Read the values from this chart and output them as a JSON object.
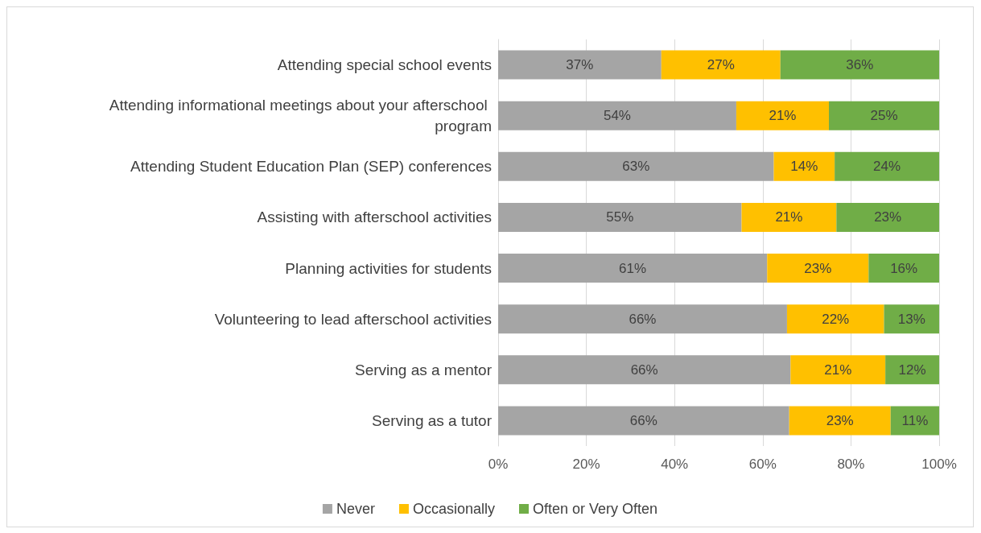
{
  "chart_data": {
    "type": "bar",
    "orientation": "horizontal",
    "stacked": true,
    "categories": [
      "Attending special school events",
      "Attending informational meetings about your afterschool program",
      "Attending Student Education Plan (SEP) conferences",
      "Assisting with afterschool activities",
      "Planning activities for students",
      "Volunteering to lead afterschool activities",
      "Serving as a mentor",
      "Serving as a tutor"
    ],
    "series": [
      {
        "name": "Never",
        "color": "#a5a5a5",
        "values": [
          37,
          54,
          62.5,
          55.2,
          61,
          65.5,
          66.3,
          66
        ],
        "value_labels": [
          "37%",
          "54%",
          "63%",
          "55%",
          "61%",
          "66%",
          "66%",
          "66%"
        ]
      },
      {
        "name": "Occasionally",
        "color": "#ffc000",
        "values": [
          27,
          21,
          13.8,
          21.5,
          23,
          22,
          21.5,
          23
        ],
        "value_labels": [
          "27%",
          "21%",
          "14%",
          "21%",
          "23%",
          "22%",
          "21%",
          "23%"
        ]
      },
      {
        "name": "Often or Very Often",
        "color": "#70ad47",
        "values": [
          36,
          25,
          23.7,
          23.3,
          16,
          12.5,
          12.2,
          11
        ],
        "value_labels": [
          "36%",
          "25%",
          "24%",
          "23%",
          "16%",
          "13%",
          "12%",
          "11%"
        ]
      }
    ],
    "xlim": [
      0,
      100
    ],
    "xticks": [
      {
        "value": 0,
        "label": "0%"
      },
      {
        "value": 20,
        "label": "20%"
      },
      {
        "value": 40,
        "label": "40%"
      },
      {
        "value": 60,
        "label": "60%"
      },
      {
        "value": 80,
        "label": "80%"
      },
      {
        "value": 100,
        "label": "100%"
      }
    ],
    "grid": "x",
    "legend": "bottom"
  }
}
